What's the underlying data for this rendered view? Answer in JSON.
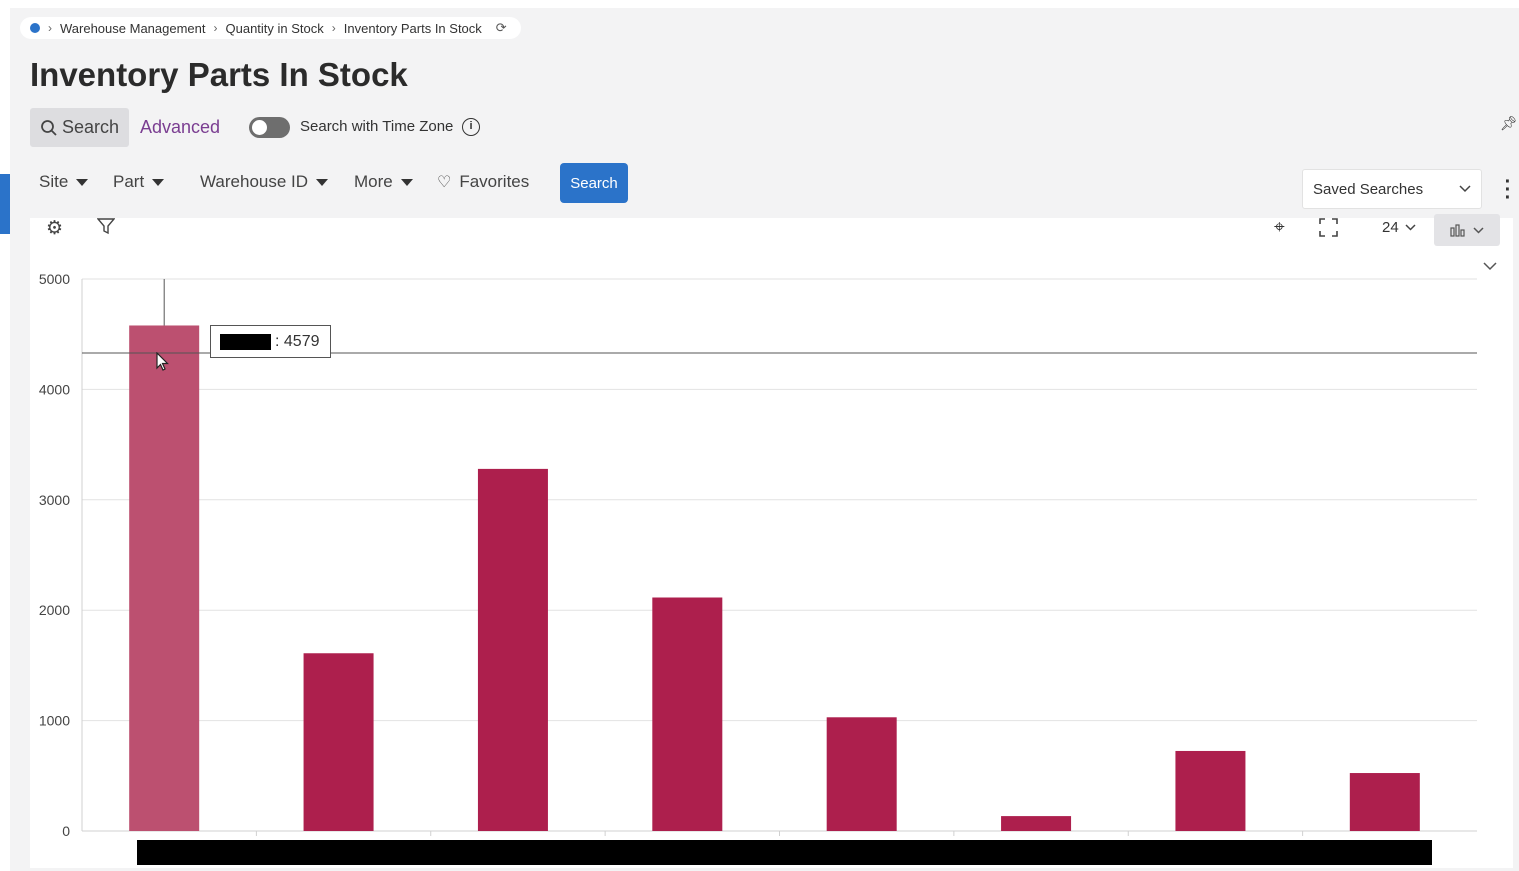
{
  "breadcrumb": {
    "items": [
      "Warehouse Management",
      "Quantity in Stock",
      "Inventory Parts In Stock"
    ]
  },
  "page_title": "Inventory Parts In Stock",
  "search_tabs": {
    "search": "Search",
    "advanced": "Advanced"
  },
  "timezone_toggle": {
    "label": "Search with Time Zone",
    "checked": false
  },
  "filters": [
    "Site",
    "Part",
    "Warehouse ID",
    "More"
  ],
  "favorites_label": "Favorites",
  "search_button_label": "Search",
  "saved_searches_label": "Saved Searches",
  "chart_toolbar": {
    "count_value": "24"
  },
  "tooltip": {
    "value": ": 4579"
  },
  "colors": {
    "accent": "#2b73c9",
    "bar": "#ad1f4d",
    "bar_hover": "#bc5070",
    "advanced": "#7a3d91"
  },
  "chart_data": {
    "type": "bar",
    "categories": [
      "",
      "",
      "",
      "",
      "",
      "",
      "",
      ""
    ],
    "values": [
      4579,
      1610,
      3280,
      2115,
      1030,
      135,
      725,
      525
    ],
    "y_ticks": [
      "0",
      "1000",
      "2000",
      "3000",
      "4000",
      "5000"
    ],
    "ylim": [
      0,
      5000
    ],
    "grid": true,
    "highlighted_index": 0,
    "crosshair_value": 4330
  }
}
